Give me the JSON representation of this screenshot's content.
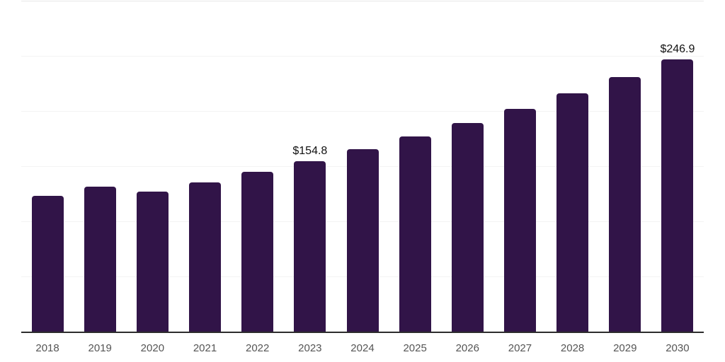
{
  "chart_data": {
    "type": "bar",
    "title": "",
    "xlabel": "",
    "ylabel": "",
    "categories": [
      "2018",
      "2019",
      "2020",
      "2021",
      "2022",
      "2023",
      "2024",
      "2025",
      "2026",
      "2027",
      "2028",
      "2029",
      "2030"
    ],
    "values": [
      123.4,
      131.9,
      127.3,
      135.5,
      144.9,
      154.8,
      165.5,
      176.9,
      189.1,
      202.1,
      216.1,
      231.0,
      246.9
    ],
    "data_labels": [
      {
        "category": "2023",
        "text": "$154.8"
      },
      {
        "category": "2030",
        "text": "$246.9"
      }
    ],
    "ylim": [
      0,
      300
    ],
    "grid_step": 50,
    "grid": "horizontal",
    "legend": "none",
    "y_axis_labels_visible": false,
    "colors": {
      "bar": "#311448",
      "gridline": "#f3f3f3",
      "gridline_top": "#e7e7e7",
      "axis_line": "#2d2d2d",
      "tick_text": "#555555",
      "data_label_text": "#111111",
      "background": "#ffffff"
    }
  }
}
